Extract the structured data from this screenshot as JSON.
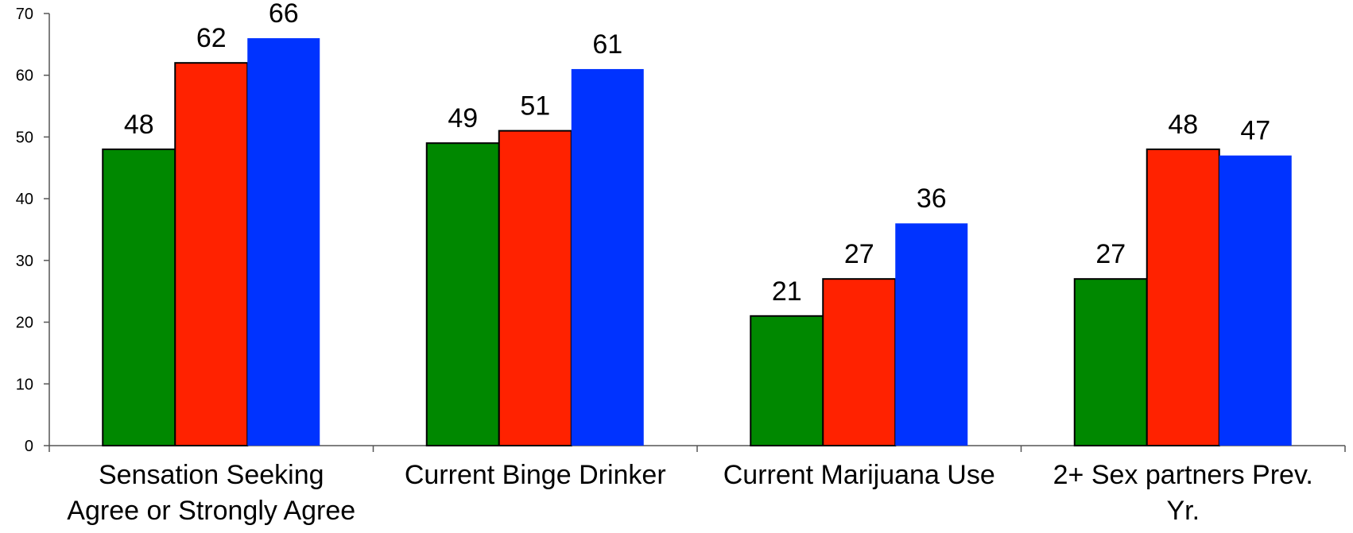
{
  "chart_data": {
    "type": "bar",
    "title": "",
    "xlabel": "",
    "ylabel": "",
    "ylim": [
      0,
      70
    ],
    "yticks": [
      0,
      10,
      20,
      30,
      40,
      50,
      60,
      70
    ],
    "grid": false,
    "legend": "none",
    "categories": [
      [
        "Sensation Seeking",
        "Agree or Strongly Agree"
      ],
      [
        "Current Binge Drinker"
      ],
      [
        "Current Marijuana Use"
      ],
      [
        "2+ Sex partners Prev.",
        "Yr."
      ]
    ],
    "series": [
      {
        "color": "#008800",
        "outlined": true,
        "values": [
          48,
          49,
          21,
          27
        ]
      },
      {
        "color": "#ff2200",
        "outlined": true,
        "values": [
          62,
          51,
          27,
          48
        ]
      },
      {
        "color": "#0033ff",
        "outlined": false,
        "values": [
          66,
          61,
          36,
          47
        ]
      }
    ]
  }
}
